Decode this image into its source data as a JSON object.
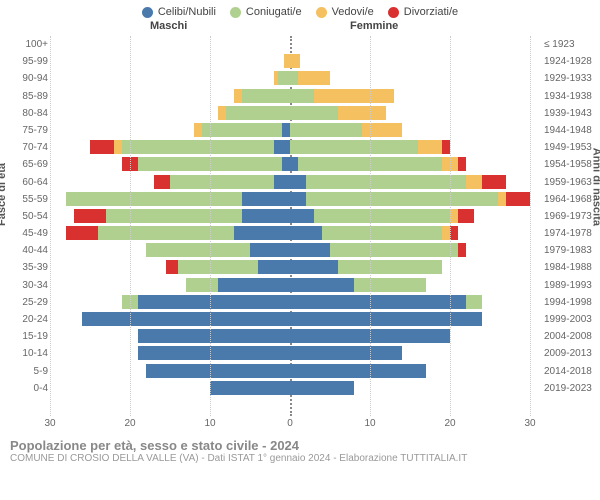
{
  "legend": [
    {
      "label": "Celibi/Nubili",
      "color": "#4a7aab"
    },
    {
      "label": "Coniugati/e",
      "color": "#b0d090"
    },
    {
      "label": "Vedovi/e",
      "color": "#f5c060"
    },
    {
      "label": "Divorziati/e",
      "color": "#d93030"
    }
  ],
  "colors": [
    "#4a7aab",
    "#b0d090",
    "#f5c060",
    "#d93030"
  ],
  "headers": {
    "male": "Maschi",
    "female": "Femmine"
  },
  "axis": {
    "left_title": "Fasce di età",
    "right_title": "Anni di nascita",
    "max": 30,
    "ticks": [
      30,
      20,
      10,
      0,
      10,
      20,
      30
    ],
    "grid_color": "#cccccc"
  },
  "title": "Popolazione per età, sesso e stato civile - 2024",
  "subtitle": "COMUNE DI CROSIO DELLA VALLE (VA) - Dati ISTAT 1° gennaio 2024 - Elaborazione TUTTITALIA.IT",
  "rows": [
    {
      "age": "100+",
      "birth": "≤ 1923",
      "m": [
        0,
        0,
        0,
        0
      ],
      "f": [
        0,
        0,
        0,
        0
      ]
    },
    {
      "age": "95-99",
      "birth": "1924-1928",
      "m": [
        0,
        0,
        0.8,
        0
      ],
      "f": [
        0,
        0,
        1.2,
        0
      ]
    },
    {
      "age": "90-94",
      "birth": "1929-1933",
      "m": [
        0,
        1.5,
        0.5,
        0
      ],
      "f": [
        0,
        1,
        4,
        0
      ]
    },
    {
      "age": "85-89",
      "birth": "1934-1938",
      "m": [
        0,
        6,
        1,
        0
      ],
      "f": [
        0,
        3,
        10,
        0
      ]
    },
    {
      "age": "80-84",
      "birth": "1939-1943",
      "m": [
        0,
        8,
        1,
        0
      ],
      "f": [
        0,
        6,
        6,
        0
      ]
    },
    {
      "age": "75-79",
      "birth": "1944-1948",
      "m": [
        1,
        10,
        1,
        0
      ],
      "f": [
        0,
        9,
        5,
        0
      ]
    },
    {
      "age": "70-74",
      "birth": "1949-1953",
      "m": [
        2,
        19,
        1,
        3
      ],
      "f": [
        0,
        16,
        3,
        1
      ]
    },
    {
      "age": "65-69",
      "birth": "1954-1958",
      "m": [
        1,
        18,
        0,
        2
      ],
      "f": [
        1,
        18,
        2,
        1
      ]
    },
    {
      "age": "60-64",
      "birth": "1959-1963",
      "m": [
        2,
        13,
        0,
        2
      ],
      "f": [
        2,
        20,
        2,
        3
      ]
    },
    {
      "age": "55-59",
      "birth": "1964-1968",
      "m": [
        6,
        22,
        0,
        0
      ],
      "f": [
        2,
        24,
        1,
        3
      ]
    },
    {
      "age": "50-54",
      "birth": "1969-1973",
      "m": [
        6,
        17,
        0,
        4
      ],
      "f": [
        3,
        17,
        1,
        2
      ]
    },
    {
      "age": "45-49",
      "birth": "1974-1978",
      "m": [
        7,
        17,
        0,
        4
      ],
      "f": [
        4,
        15,
        1,
        1
      ]
    },
    {
      "age": "40-44",
      "birth": "1979-1983",
      "m": [
        5,
        13,
        0,
        0
      ],
      "f": [
        5,
        16,
        0,
        1
      ]
    },
    {
      "age": "35-39",
      "birth": "1984-1988",
      "m": [
        4,
        10,
        0,
        1.5
      ],
      "f": [
        6,
        13,
        0,
        0
      ]
    },
    {
      "age": "30-34",
      "birth": "1989-1993",
      "m": [
        9,
        4,
        0,
        0
      ],
      "f": [
        8,
        9,
        0,
        0
      ]
    },
    {
      "age": "25-29",
      "birth": "1994-1998",
      "m": [
        19,
        2,
        0,
        0
      ],
      "f": [
        22,
        2,
        0,
        0
      ]
    },
    {
      "age": "20-24",
      "birth": "1999-2003",
      "m": [
        26,
        0,
        0,
        0
      ],
      "f": [
        24,
        0,
        0,
        0
      ]
    },
    {
      "age": "15-19",
      "birth": "2004-2008",
      "m": [
        19,
        0,
        0,
        0
      ],
      "f": [
        20,
        0,
        0,
        0
      ]
    },
    {
      "age": "10-14",
      "birth": "2009-2013",
      "m": [
        19,
        0,
        0,
        0
      ],
      "f": [
        14,
        0,
        0,
        0
      ]
    },
    {
      "age": "5-9",
      "birth": "2014-2018",
      "m": [
        18,
        0,
        0,
        0
      ],
      "f": [
        17,
        0,
        0,
        0
      ]
    },
    {
      "age": "0-4",
      "birth": "2019-2023",
      "m": [
        10,
        0,
        0,
        0
      ],
      "f": [
        8,
        0,
        0,
        0
      ]
    }
  ]
}
